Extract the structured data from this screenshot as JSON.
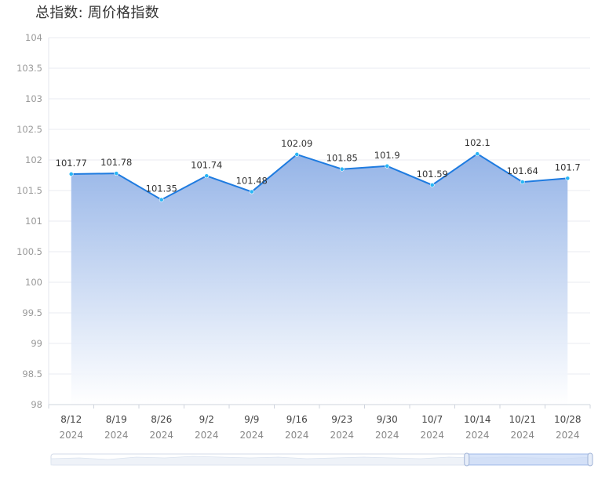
{
  "header": {
    "title": "总指数: 周价格指数"
  },
  "chart_data": {
    "type": "area",
    "title": "总指数: 周价格指数",
    "categories": [
      "8/12",
      "8/19",
      "8/26",
      "9/2",
      "9/9",
      "9/16",
      "9/23",
      "9/30",
      "10/7",
      "10/14",
      "10/21",
      "10/28"
    ],
    "category_year": "2024",
    "series": [
      {
        "values": [
          101.77,
          101.78,
          101.35,
          101.74,
          101.48,
          102.09,
          101.85,
          101.9,
          101.59,
          102.1,
          101.64,
          101.7
        ]
      }
    ],
    "data_labels": [
      "101.77",
      "101.78",
      "101.35",
      "101.74",
      "101.48",
      "102.09",
      "101.85",
      "101.9",
      "101.59",
      "102.1",
      "101.64",
      "101.7"
    ],
    "yticks": [
      "98",
      "98.5",
      "99",
      "99.5",
      "100",
      "100.5",
      "101",
      "101.5",
      "102",
      "102.5",
      "103",
      "103.5",
      "104"
    ],
    "ylim": [
      98,
      104
    ],
    "xlabel": "",
    "ylabel": "",
    "grid": true,
    "colors": {
      "line": "#1e7be0",
      "marker": "#29b6f6",
      "area_top": "#8fb3e6",
      "grid": "#e8ebf2"
    },
    "data_zoom": {
      "visible": true,
      "range_percent": [
        77,
        100
      ]
    }
  }
}
